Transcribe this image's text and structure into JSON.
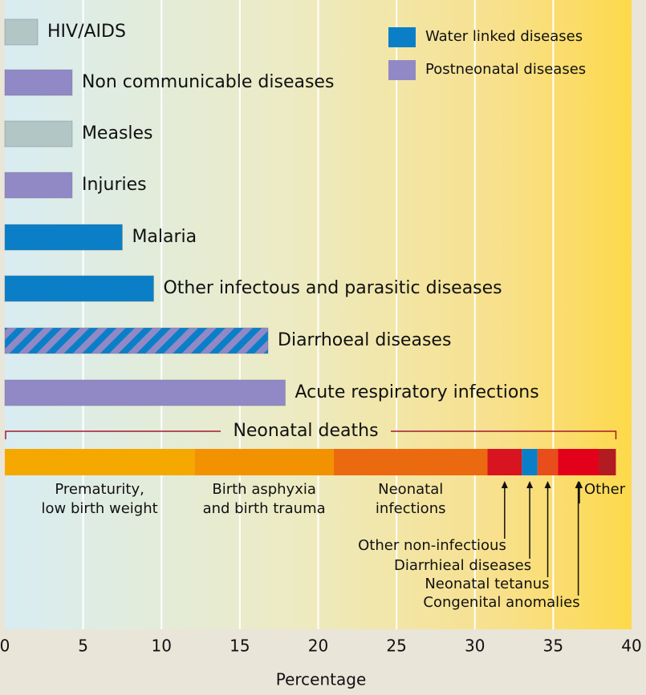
{
  "chart_data": {
    "type": "bar",
    "orientation": "horizontal",
    "xlabel": "Percentage",
    "xlim": [
      0,
      40
    ],
    "xticks": [
      0,
      5,
      10,
      15,
      20,
      25,
      30,
      35,
      40
    ],
    "grid": true,
    "categories": [
      "HIV/AIDS",
      "Non communicable diseases",
      "Measles",
      "Injuries",
      "Malaria",
      "Other infectous and parasitic diseases",
      "Diarrhoeal diseases",
      "Acute respiratory infections"
    ],
    "values": [
      2.1,
      4.3,
      4.3,
      4.3,
      7.5,
      9.5,
      16.8,
      17.9
    ],
    "colors": [
      "#b3c6c6",
      "#9189c6",
      "#b3c6c6",
      "#9189c6",
      "#0a7fc8",
      "#0a7fc8",
      [
        "#0a7fc8",
        "#9189c6"
      ],
      "#9189c6"
    ],
    "legend_position": "upper right",
    "legend": [
      {
        "name": "Water linked diseases",
        "color": "#0a7fc8"
      },
      {
        "name": "Postneonatal diseases",
        "color": "#9189c6"
      }
    ],
    "stacked": {
      "title": "Neonatal deaths",
      "segments": [
        {
          "name": [
            "Prematurity,",
            "low birth weight"
          ],
          "value": 12.1,
          "color": "#f5a800"
        },
        {
          "name": [
            "Birth asphyxia",
            "and birth trauma"
          ],
          "value": 8.9,
          "color": "#f39200"
        },
        {
          "name": [
            "Neonatal",
            "infections"
          ],
          "value": 9.8,
          "color": "#ec6a0f"
        },
        {
          "name": [
            "Other non-infectious"
          ],
          "value": 2.2,
          "color": "#d7141f"
        },
        {
          "name": [
            "Diarrhieal diseases"
          ],
          "value": 1.0,
          "color": "#0a7fc8"
        },
        {
          "name": [
            "Neonatal tetanus"
          ],
          "value": 1.3,
          "color": "#e84e1b"
        },
        {
          "name": [
            "Congenital anomalies"
          ],
          "value": 2.6,
          "color": "#e3001b"
        },
        {
          "name": [
            "Other"
          ],
          "value": 1.1,
          "color": "#b31b22"
        }
      ]
    }
  }
}
